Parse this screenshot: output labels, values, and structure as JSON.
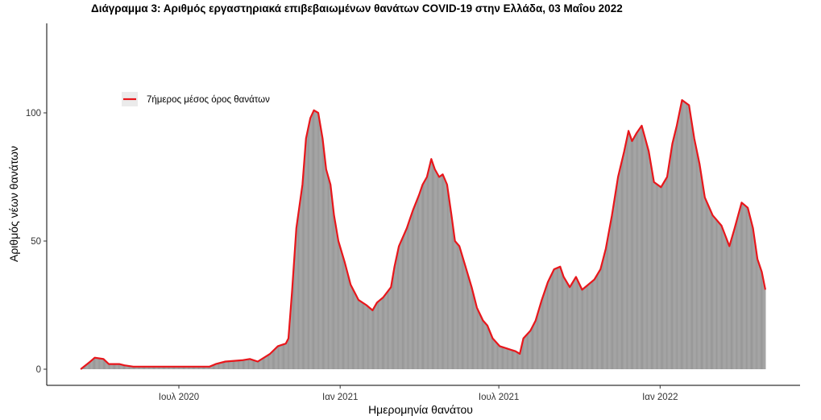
{
  "chart_data": {
    "type": "bar+line",
    "title": "Διάγραμμα 3: Αριθμός εργαστηριακά επιβεβαιωμένων θανάτων COVID-19 στην Ελλάδα, 03 Μαΐου 2022",
    "xlabel": "Ημερομηνία θανάτου",
    "ylabel": "Αριθμός νέων θανάτων",
    "ylim": [
      0,
      130
    ],
    "xlim": [
      "2020-02-25",
      "2022-05-31"
    ],
    "yticks": [
      0,
      50,
      100
    ],
    "xticks": [
      {
        "date": "2020-07-01",
        "label": "Ιουλ 2020"
      },
      {
        "date": "2021-01-01",
        "label": "Ιαν 2021"
      },
      {
        "date": "2021-07-01",
        "label": "Ιουλ 2021"
      },
      {
        "date": "2022-01-01",
        "label": "Ιαν 2022"
      }
    ],
    "grid": false,
    "legend": {
      "placement": "top-left",
      "entries": [
        "7ήμερος μέσος όρος θανάτων"
      ]
    },
    "colors": {
      "bars": "#999999",
      "line": "#e8161b"
    },
    "x": [
      "2020-03-11",
      "2020-03-22",
      "2020-03-27",
      "2020-04-06",
      "2020-04-12",
      "2020-04-24",
      "2020-04-30",
      "2020-05-10",
      "2020-08-05",
      "2020-08-12",
      "2020-08-23",
      "2020-09-11",
      "2020-09-20",
      "2020-09-29",
      "2020-10-13",
      "2020-10-22",
      "2020-10-31",
      "2020-11-03",
      "2020-11-07",
      "2020-11-12",
      "2020-11-19",
      "2020-11-23",
      "2020-11-28",
      "2020-12-02",
      "2020-12-07",
      "2020-12-12",
      "2020-12-16",
      "2020-12-21",
      "2020-12-25",
      "2020-12-30",
      "2021-01-06",
      "2021-01-13",
      "2021-01-22",
      "2021-01-31",
      "2021-02-07",
      "2021-02-12",
      "2021-02-19",
      "2021-02-28",
      "2021-03-04",
      "2021-03-09",
      "2021-03-18",
      "2021-03-25",
      "2021-04-01",
      "2021-04-05",
      "2021-04-10",
      "2021-04-15",
      "2021-04-19",
      "2021-04-24",
      "2021-04-28",
      "2021-05-03",
      "2021-05-08",
      "2021-05-12",
      "2021-05-17",
      "2021-05-24",
      "2021-05-31",
      "2021-06-06",
      "2021-06-13",
      "2021-06-18",
      "2021-06-24",
      "2021-07-02",
      "2021-07-11",
      "2021-07-20",
      "2021-07-25",
      "2021-07-29",
      "2021-08-06",
      "2021-08-12",
      "2021-08-19",
      "2021-08-26",
      "2021-09-02",
      "2021-09-09",
      "2021-09-13",
      "2021-09-20",
      "2021-09-27",
      "2021-10-04",
      "2021-10-11",
      "2021-10-18",
      "2021-10-25",
      "2021-10-31",
      "2021-11-07",
      "2021-11-14",
      "2021-11-21",
      "2021-11-26",
      "2021-11-30",
      "2021-12-05",
      "2021-12-11",
      "2021-12-19",
      "2021-12-25",
      "2022-01-02",
      "2022-01-09",
      "2022-01-15",
      "2022-01-20",
      "2022-01-26",
      "2022-02-03",
      "2022-02-09",
      "2022-02-15",
      "2022-02-21",
      "2022-03-02",
      "2022-03-12",
      "2022-03-21",
      "2022-03-27",
      "2022-04-04",
      "2022-04-11",
      "2022-04-17",
      "2022-04-22",
      "2022-04-27",
      "2022-05-01"
    ],
    "series": [
      {
        "kind": "bar",
        "values": [
          0,
          3,
          4.5,
          4,
          2,
          2,
          1.5,
          1,
          1,
          2,
          3,
          3.5,
          4,
          3,
          6,
          9,
          10,
          12,
          30,
          55,
          72,
          90,
          98,
          101,
          100,
          90,
          78,
          72,
          60,
          50,
          42,
          33,
          27,
          25,
          23,
          26,
          28,
          32,
          40,
          48,
          55,
          62,
          68,
          72,
          75,
          82,
          78,
          75,
          76,
          72,
          60,
          50,
          48,
          40,
          32,
          24,
          19,
          17,
          12,
          9,
          8,
          7,
          6,
          12,
          15,
          19,
          27,
          34,
          39,
          40,
          36,
          32,
          36,
          31,
          33,
          35,
          39,
          47,
          60,
          75,
          85,
          93,
          89,
          92,
          95,
          85,
          73,
          71,
          75,
          88,
          95,
          105,
          103,
          90,
          80,
          67,
          60,
          56,
          48,
          55,
          65,
          63,
          55,
          43,
          38,
          31
        ]
      },
      {
        "kind": "line",
        "name": "7ήμερος μέσος όρος θανάτων",
        "values": [
          0,
          3,
          4.5,
          4,
          2,
          2,
          1.5,
          1,
          1,
          2,
          3,
          3.5,
          4,
          3,
          6,
          9,
          10,
          12,
          30,
          55,
          72,
          90,
          98,
          101,
          100,
          90,
          78,
          72,
          60,
          50,
          42,
          33,
          27,
          25,
          23,
          26,
          28,
          32,
          40,
          48,
          55,
          62,
          68,
          72,
          75,
          82,
          78,
          75,
          76,
          72,
          60,
          50,
          48,
          40,
          32,
          24,
          19,
          17,
          12,
          9,
          8,
          7,
          6,
          12,
          15,
          19,
          27,
          34,
          39,
          40,
          36,
          32,
          36,
          31,
          33,
          35,
          39,
          47,
          60,
          75,
          85,
          93,
          89,
          92,
          95,
          85,
          73,
          71,
          75,
          88,
          95,
          105,
          103,
          90,
          80,
          67,
          60,
          56,
          48,
          55,
          65,
          63,
          55,
          43,
          38,
          31
        ]
      }
    ]
  }
}
